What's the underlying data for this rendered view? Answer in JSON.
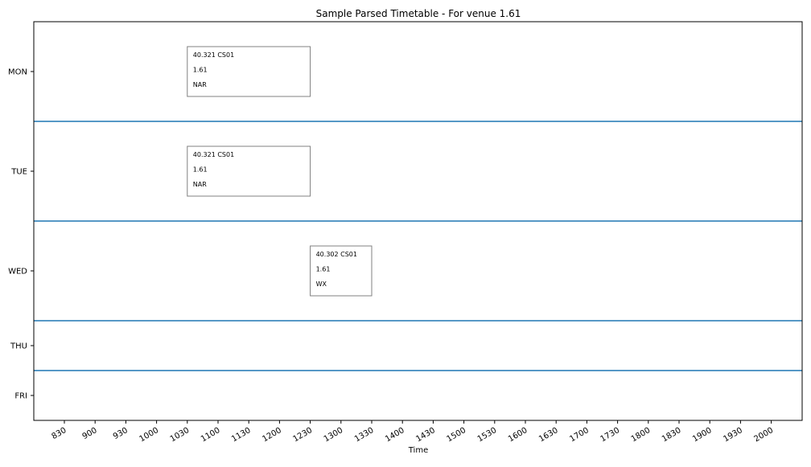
{
  "chart_data": {
    "type": "timetable",
    "title": "Sample Parsed Timetable - For venue 1.61",
    "xlabel": "Time",
    "ylabel": "",
    "days": [
      "MON",
      "TUE",
      "WED",
      "THU",
      "FRI"
    ],
    "x_ticks": [
      "830",
      "900",
      "930",
      "1000",
      "1030",
      "1100",
      "1130",
      "1200",
      "1230",
      "1300",
      "1330",
      "1400",
      "1430",
      "1500",
      "1530",
      "1600",
      "1630",
      "1700",
      "1730",
      "1800",
      "1830",
      "1900",
      "1930",
      "2000"
    ],
    "sessions": [
      {
        "day": "MON",
        "start": "1030",
        "end": "1230",
        "lines": [
          "40.321 CS01",
          "1.61",
          "NAR"
        ]
      },
      {
        "day": "TUE",
        "start": "1030",
        "end": "1230",
        "lines": [
          "40.321 CS01",
          "1.61",
          "NAR"
        ]
      },
      {
        "day": "WED",
        "start": "1230",
        "end": "1330",
        "lines": [
          "40.302 CS01",
          "1.61",
          "WX"
        ]
      }
    ],
    "colors": {
      "separator": "#1f77b4",
      "box_edge": "#808080",
      "frame": "#000000"
    },
    "grid": false
  }
}
